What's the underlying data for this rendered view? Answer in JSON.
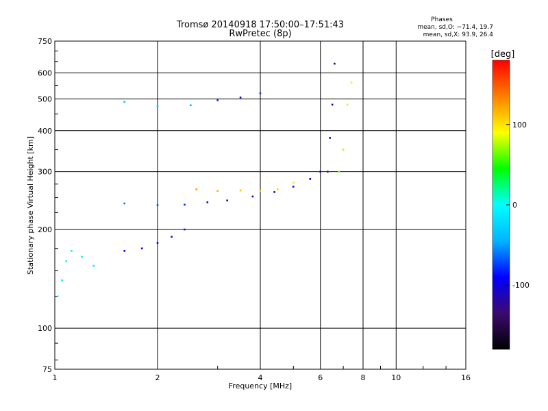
{
  "chart_data": {
    "type": "scatter",
    "title": "Tromsø 20140918 17:50:00–17:51:43",
    "subtitle": "RwPretec (8p)",
    "xlabel": "Frequency [MHz]",
    "ylabel": "Stationary phase Virtual Height [km]",
    "x_scale": "log",
    "y_scale": "log",
    "xlim": [
      1,
      16
    ],
    "ylim": [
      75,
      750
    ],
    "x_ticks": [
      1,
      2,
      4,
      6,
      8,
      10,
      16
    ],
    "y_ticks": [
      75,
      100,
      200,
      300,
      400,
      500,
      600,
      750
    ],
    "grid": true,
    "phases": {
      "title": "Phases",
      "line_o": "mean, sd,O: −71.4, 19.7",
      "line_x": "mean, sd,X:  93.9, 26.4"
    },
    "colorbar": {
      "unit": "[deg]",
      "range": [
        -180,
        180
      ],
      "ticks": [
        100,
        0,
        -100
      ],
      "colors": [
        "#000000",
        "#3c0a6e",
        "#0000ff",
        "#00b4ff",
        "#00ffff",
        "#00ff00",
        "#ffff00",
        "#ff8000",
        "#ff0000"
      ]
    },
    "series": [
      {
        "values": [
          {
            "x": 1.02,
            "y": 125,
            "phase": 0
          },
          {
            "x": 1.05,
            "y": 140,
            "phase": -10
          },
          {
            "x": 1.08,
            "y": 160,
            "phase": -5
          },
          {
            "x": 1.12,
            "y": 172,
            "phase": 5
          },
          {
            "x": 1.2,
            "y": 165,
            "phase": -15
          },
          {
            "x": 1.3,
            "y": 155,
            "phase": -10
          }
        ]
      },
      {
        "values": [
          {
            "x": 1.6,
            "y": 172,
            "phase": -90
          },
          {
            "x": 1.8,
            "y": 175,
            "phase": -95
          },
          {
            "x": 2.0,
            "y": 182,
            "phase": -95
          },
          {
            "x": 2.2,
            "y": 190,
            "phase": -90
          },
          {
            "x": 2.4,
            "y": 200,
            "phase": -85
          }
        ]
      },
      {
        "values": [
          {
            "x": 1.6,
            "y": 240,
            "phase": -60
          },
          {
            "x": 2.0,
            "y": 237,
            "phase": -70
          },
          {
            "x": 2.4,
            "y": 238,
            "phase": -80
          },
          {
            "x": 2.8,
            "y": 242,
            "phase": -90
          },
          {
            "x": 3.2,
            "y": 245,
            "phase": -100
          },
          {
            "x": 3.8,
            "y": 252,
            "phase": -105
          },
          {
            "x": 4.4,
            "y": 260,
            "phase": -110
          },
          {
            "x": 5.0,
            "y": 270,
            "phase": -110
          },
          {
            "x": 5.6,
            "y": 285,
            "phase": -100
          },
          {
            "x": 6.0,
            "y": 300,
            "phase": -110
          }
        ]
      },
      {
        "values": [
          {
            "x": 2.6,
            "y": 265,
            "phase": 130
          },
          {
            "x": 3.0,
            "y": 262,
            "phase": 120
          },
          {
            "x": 3.5,
            "y": 263,
            "phase": 115
          },
          {
            "x": 4.0,
            "y": 262,
            "phase": 110
          },
          {
            "x": 4.5,
            "y": 265,
            "phase": 105
          },
          {
            "x": 5.0,
            "y": 278,
            "phase": 100
          }
        ]
      },
      {
        "values": [
          {
            "x": 1.6,
            "y": 490,
            "phase": -40
          },
          {
            "x": 2.0,
            "y": 475,
            "phase": -35
          },
          {
            "x": 2.5,
            "y": 478,
            "phase": -45
          },
          {
            "x": 3.0,
            "y": 495,
            "phase": -80
          },
          {
            "x": 3.5,
            "y": 505,
            "phase": -90
          },
          {
            "x": 4.0,
            "y": 520,
            "phase": -75
          }
        ]
      },
      {
        "values": [
          {
            "x": 6.3,
            "y": 300,
            "phase": -120
          },
          {
            "x": 6.4,
            "y": 380,
            "phase": -115
          },
          {
            "x": 6.5,
            "y": 480,
            "phase": -110
          },
          {
            "x": 6.6,
            "y": 640,
            "phase": -110
          }
        ]
      },
      {
        "values": [
          {
            "x": 6.8,
            "y": 300,
            "phase": 70
          },
          {
            "x": 7.0,
            "y": 350,
            "phase": 75
          },
          {
            "x": 7.2,
            "y": 480,
            "phase": 80
          },
          {
            "x": 7.4,
            "y": 560,
            "phase": 85
          }
        ]
      }
    ]
  }
}
